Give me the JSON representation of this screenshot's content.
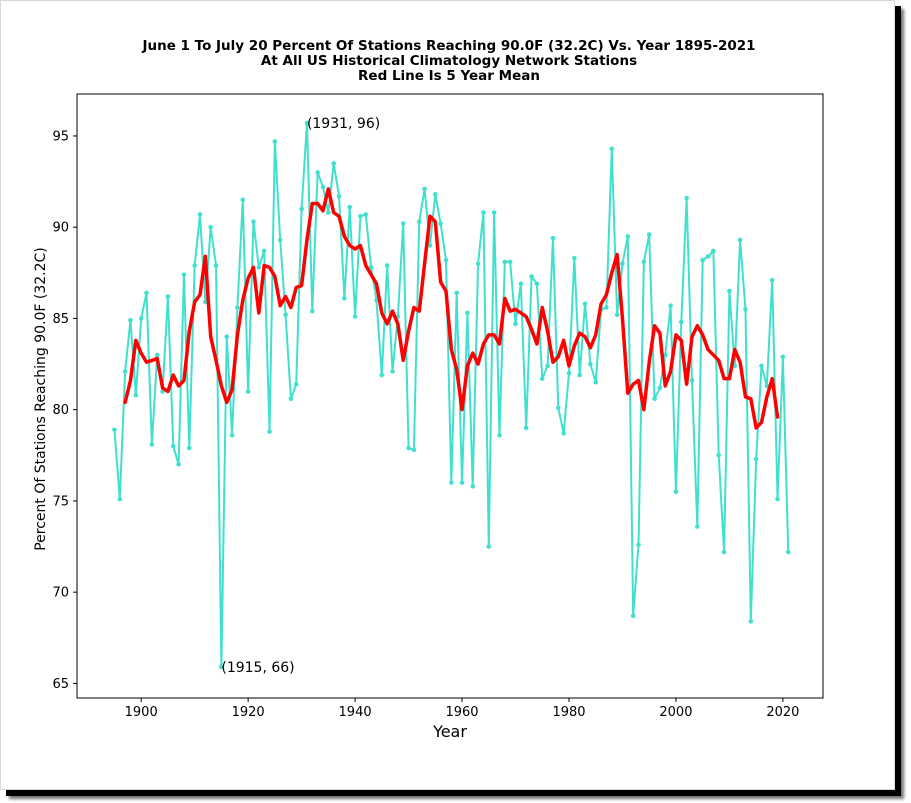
{
  "chart_data": {
    "type": "line",
    "title_lines": [
      "June 1 To July 20 Percent Of Stations Reaching 90.0F (32.2C) Vs. Year 1895-2021",
      "At All US Historical Climatology Network Stations",
      "Red Line Is 5 Year Mean"
    ],
    "xlabel": "Year",
    "ylabel": "Percent Of Stations Reaching 90.0F (32.2C)",
    "xlim": [
      1888,
      2027.5
    ],
    "ylim": [
      64.2,
      97.3
    ],
    "xticks": [
      1900,
      1920,
      1940,
      1960,
      1980,
      2000,
      2020
    ],
    "yticks": [
      65,
      70,
      75,
      80,
      85,
      90,
      95
    ],
    "grid": false,
    "legend": "none",
    "colors": {
      "annual": "#40e0d0",
      "mean": "#ff0000"
    },
    "annotations": [
      {
        "label": "(1931, 96)",
        "x": 1931,
        "y": 95.7
      },
      {
        "label": "(1915, 66)",
        "x": 1915,
        "y": 65.9
      }
    ],
    "series": [
      {
        "role": "annual",
        "x": [
          1895,
          1896,
          1897,
          1898,
          1899,
          1900,
          1901,
          1902,
          1903,
          1904,
          1905,
          1906,
          1907,
          1908,
          1909,
          1910,
          1911,
          1912,
          1913,
          1914,
          1915,
          1916,
          1917,
          1918,
          1919,
          1920,
          1921,
          1922,
          1923,
          1924,
          1925,
          1926,
          1927,
          1928,
          1929,
          1930,
          1931,
          1932,
          1933,
          1934,
          1935,
          1936,
          1937,
          1938,
          1939,
          1940,
          1941,
          1942,
          1943,
          1944,
          1945,
          1946,
          1947,
          1948,
          1949,
          1950,
          1951,
          1952,
          1953,
          1954,
          1955,
          1956,
          1957,
          1958,
          1959,
          1960,
          1961,
          1962,
          1963,
          1964,
          1965,
          1966,
          1967,
          1968,
          1969,
          1970,
          1971,
          1972,
          1973,
          1974,
          1975,
          1976,
          1977,
          1978,
          1979,
          1980,
          1981,
          1982,
          1983,
          1984,
          1985,
          1986,
          1987,
          1988,
          1989,
          1990,
          1991,
          1992,
          1993,
          1994,
          1995,
          1996,
          1997,
          1998,
          1999,
          2000,
          2001,
          2002,
          2003,
          2004,
          2005,
          2006,
          2007,
          2008,
          2009,
          2010,
          2011,
          2012,
          2013,
          2014,
          2015,
          2016,
          2017,
          2018,
          2019,
          2020,
          2021
        ],
        "y": [
          78.9,
          75.1,
          82.1,
          84.9,
          80.8,
          85.0,
          86.4,
          78.1,
          83.0,
          81.0,
          86.2,
          78.0,
          77.0,
          87.4,
          77.9,
          87.9,
          90.7,
          85.9,
          90.0,
          87.9,
          65.9,
          84.0,
          78.6,
          85.6,
          91.5,
          81.0,
          90.3,
          87.8,
          88.7,
          78.8,
          94.7,
          89.3,
          85.2,
          80.6,
          81.4,
          91.0,
          95.7,
          85.4,
          93.0,
          92.2,
          90.8,
          93.5,
          91.7,
          86.1,
          91.1,
          85.1,
          90.6,
          90.7,
          87.8,
          86.0,
          81.9,
          87.9,
          82.1,
          85.1,
          90.2,
          77.9,
          77.8,
          90.3,
          92.1,
          89.0,
          91.8,
          90.2,
          88.2,
          76.0,
          86.4,
          76.0,
          85.3,
          75.8,
          88.0,
          90.8,
          72.5,
          90.8,
          78.6,
          88.1,
          88.1,
          84.7,
          86.9,
          79.0,
          87.3,
          86.9,
          81.7,
          82.4,
          89.4,
          80.1,
          78.7,
          82.0,
          88.3,
          81.9,
          85.8,
          82.5,
          81.5,
          85.5,
          85.6,
          94.3,
          85.2,
          88.0,
          89.5,
          68.7,
          72.6,
          88.1,
          89.6,
          80.6,
          81.2,
          83.0,
          85.7,
          75.5,
          84.8,
          91.6,
          81.6,
          73.6,
          88.2,
          88.4,
          88.7,
          77.5,
          72.2,
          86.5,
          82.4,
          89.3,
          85.5,
          68.4,
          77.3,
          82.4,
          81.3,
          87.1,
          75.1,
          82.9,
          72.2
        ]
      },
      {
        "role": "5-year mean",
        "x": [
          1897,
          1898,
          1899,
          1900,
          1901,
          1902,
          1903,
          1904,
          1905,
          1906,
          1907,
          1908,
          1909,
          1910,
          1911,
          1912,
          1913,
          1914,
          1915,
          1916,
          1917,
          1918,
          1919,
          1920,
          1921,
          1922,
          1923,
          1924,
          1925,
          1926,
          1927,
          1928,
          1929,
          1930,
          1931,
          1932,
          1933,
          1934,
          1935,
          1936,
          1937,
          1938,
          1939,
          1940,
          1941,
          1942,
          1943,
          1944,
          1945,
          1946,
          1947,
          1948,
          1949,
          1950,
          1951,
          1952,
          1953,
          1954,
          1955,
          1956,
          1957,
          1958,
          1959,
          1960,
          1961,
          1962,
          1963,
          1964,
          1965,
          1966,
          1967,
          1968,
          1969,
          1970,
          1971,
          1972,
          1973,
          1974,
          1975,
          1976,
          1977,
          1978,
          1979,
          1980,
          1981,
          1982,
          1983,
          1984,
          1985,
          1986,
          1987,
          1988,
          1989,
          1990,
          1991,
          1992,
          1993,
          1994,
          1995,
          1996,
          1997,
          1998,
          1999,
          2000,
          2001,
          2002,
          2003,
          2004,
          2005,
          2006,
          2007,
          2008,
          2009,
          2010,
          2011,
          2012,
          2013,
          2014,
          2015,
          2016,
          2017,
          2018,
          2019
        ],
        "y": [
          80.4,
          81.6,
          83.8,
          83.1,
          82.6,
          82.7,
          82.8,
          81.2,
          81.0,
          81.9,
          81.3,
          81.6,
          84.3,
          85.9,
          86.3,
          88.4,
          84.0,
          82.7,
          81.3,
          80.4,
          81.1,
          84.1,
          86.0,
          87.2,
          87.8,
          85.3,
          87.9,
          87.8,
          87.3,
          85.7,
          86.2,
          85.6,
          86.7,
          86.8,
          89.3,
          91.3,
          91.3,
          90.9,
          92.1,
          90.8,
          90.6,
          89.5,
          89.0,
          88.8,
          89.0,
          87.9,
          87.4,
          86.9,
          85.3,
          84.7,
          85.4,
          84.7,
          82.7,
          84.3,
          85.6,
          85.4,
          88.0,
          90.6,
          90.3,
          87.0,
          86.5,
          83.3,
          82.2,
          80.0,
          82.4,
          83.1,
          82.5,
          83.6,
          84.1,
          84.1,
          83.6,
          86.1,
          85.4,
          85.5,
          85.3,
          85.1,
          84.4,
          83.6,
          85.6,
          84.3,
          82.6,
          82.9,
          83.8,
          82.4,
          83.5,
          84.2,
          84.0,
          83.4,
          84.1,
          85.8,
          86.3,
          87.5,
          88.5,
          85.0,
          80.9,
          81.4,
          81.6,
          80.0,
          82.6,
          84.6,
          84.2,
          81.3,
          82.1,
          84.1,
          83.8,
          81.4,
          84.0,
          84.6,
          84.1,
          83.3,
          83.0,
          82.7,
          81.7,
          81.7,
          83.3,
          82.6,
          80.7,
          80.6,
          79.0,
          79.3,
          80.7,
          81.7,
          79.6
        ]
      }
    ]
  }
}
